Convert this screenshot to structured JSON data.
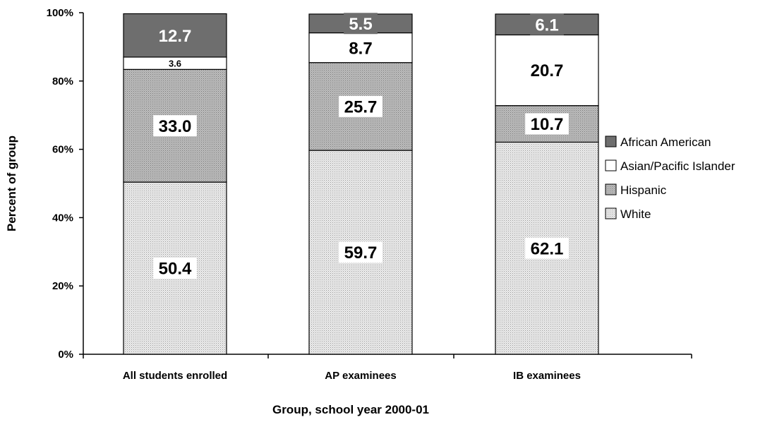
{
  "chart_data": {
    "type": "bar",
    "stacked": true,
    "title": "",
    "xlabel": "Group, school year 2000-01",
    "ylabel": "Percent of group",
    "ylim": [
      0,
      100
    ],
    "yticks": [
      "0%",
      "20%",
      "40%",
      "60%",
      "80%",
      "100%"
    ],
    "categories": [
      "All students enrolled",
      "AP examinees",
      "IB examinees"
    ],
    "series": [
      {
        "name": "White",
        "values": [
          50.4,
          59.7,
          62.1
        ],
        "labels": [
          "50.4",
          "59.7",
          "62.1"
        ],
        "fill": "#e6e6e6",
        "pattern": "dots"
      },
      {
        "name": "Hispanic",
        "values": [
          33.0,
          25.7,
          10.7
        ],
        "labels": [
          "33.0",
          "25.7",
          "10.7"
        ],
        "fill": "#b3b3b3",
        "pattern": "dots"
      },
      {
        "name": "Asian/Pacific Islander",
        "values": [
          3.6,
          8.7,
          20.7
        ],
        "labels": [
          "3.6",
          "8.7",
          "20.7"
        ],
        "fill": "#ffffff",
        "pattern": "none"
      },
      {
        "name": "African American",
        "values": [
          12.7,
          5.5,
          6.1
        ],
        "labels": [
          "12.7",
          "5.5",
          "6.1"
        ],
        "fill": "#6e6e6e",
        "pattern": "none"
      }
    ],
    "legend_position": "right",
    "grid": false
  }
}
